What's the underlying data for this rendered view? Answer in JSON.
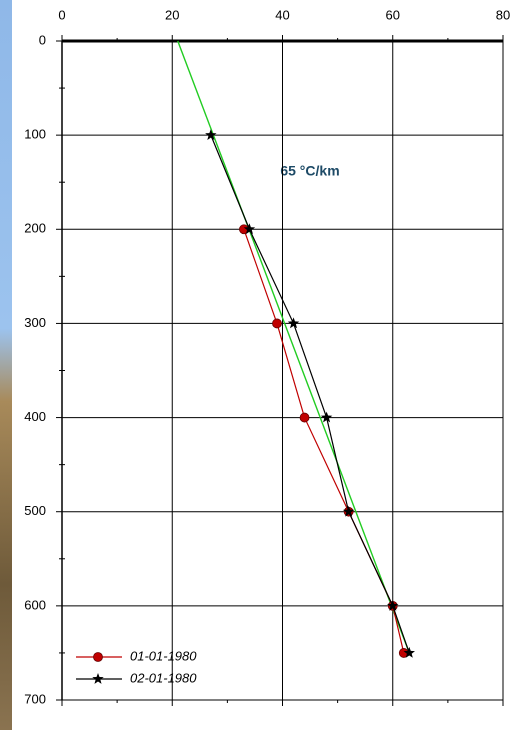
{
  "chart_data": {
    "type": "profile",
    "xlim": [
      0,
      80
    ],
    "xticks": [
      0,
      20,
      40,
      60,
      80
    ],
    "xminorticks": [
      10,
      30,
      50,
      70
    ],
    "ylim": [
      0,
      700
    ],
    "yticks": [
      0,
      100,
      200,
      300,
      400,
      500,
      600,
      700
    ],
    "yminorticks": [
      50,
      150,
      250,
      350,
      450,
      550,
      650
    ],
    "y_inverted": true,
    "x_axis_position": "top",
    "grid": true,
    "legend": "bottom-left",
    "annotation": "65 °C/km",
    "series": [
      {
        "name": "01-01-1980",
        "color": "#c00000",
        "marker": "circle",
        "x": [
          33,
          39,
          44,
          52,
          60,
          62
        ],
        "y": [
          200,
          300,
          400,
          500,
          600,
          650
        ]
      },
      {
        "name": "02-01-1980",
        "color": "#000000",
        "marker": "star",
        "x": [
          27,
          34,
          42,
          48,
          52,
          60,
          63
        ],
        "y": [
          100,
          200,
          300,
          400,
          500,
          600,
          650
        ]
      }
    ],
    "trend": {
      "color": "#22cc22",
      "x": [
        21,
        63
      ],
      "y": [
        0,
        650
      ]
    }
  }
}
